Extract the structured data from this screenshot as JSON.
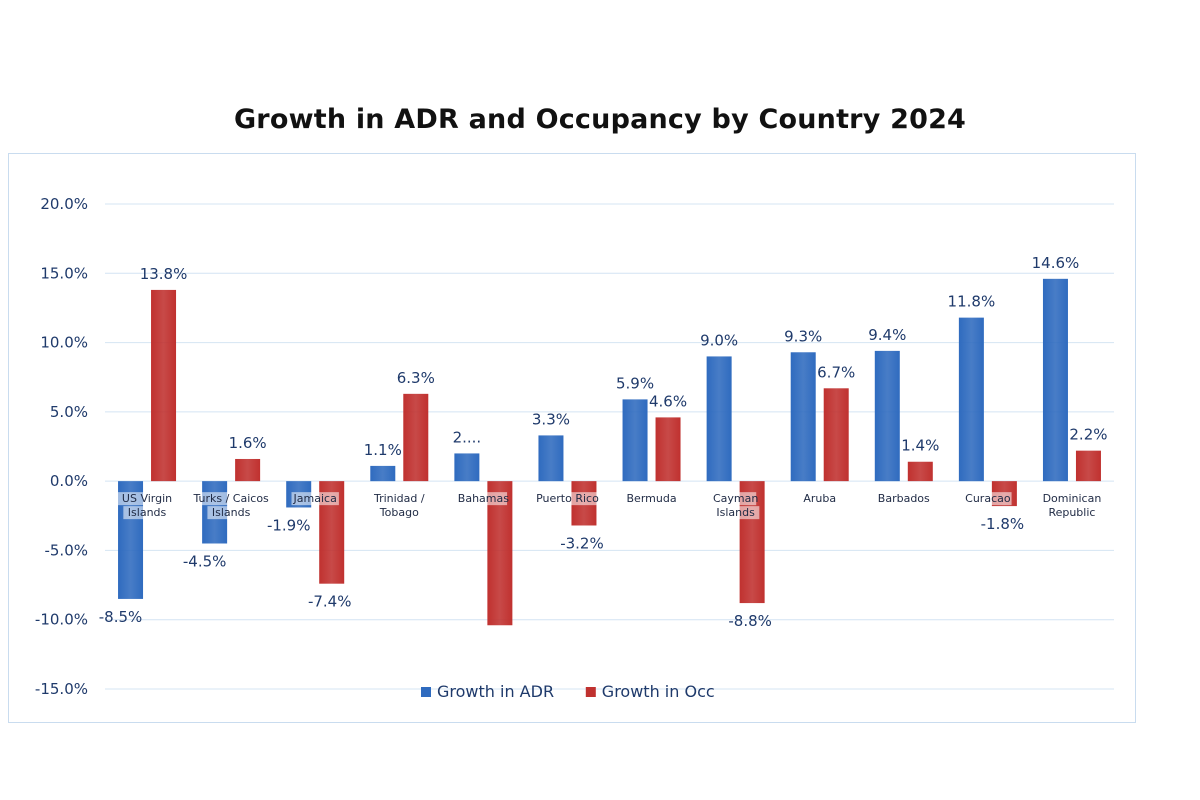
{
  "chart_data": {
    "type": "bar",
    "title": "Growth in ADR and Occupancy by Country 2024",
    "xlabel": "",
    "ylabel": "",
    "ylim": [
      -15,
      20
    ],
    "yticks": [
      "20.0%",
      "15.0%",
      "10.0%",
      "5.0%",
      "0.0%",
      "-5.0%",
      "-10.0%",
      "-15.0%"
    ],
    "ytick_values": [
      20,
      15,
      10,
      5,
      0,
      -5,
      -10,
      -15
    ],
    "grid": true,
    "legend_position": "bottom",
    "categories": [
      [
        "US Virgin",
        "Islands"
      ],
      [
        "Turks / Caicos",
        "Islands"
      ],
      [
        "Jamaica"
      ],
      [
        "Trinidad /",
        "Tobago"
      ],
      [
        "Bahamas"
      ],
      [
        "Puerto Rico"
      ],
      [
        "Bermuda"
      ],
      [
        "Cayman",
        "Islands"
      ],
      [
        "Aruba"
      ],
      [
        "Barbados"
      ],
      [
        "Curacao"
      ],
      [
        "Dominican",
        "Republic"
      ]
    ],
    "series": [
      {
        "name": "Growth in ADR",
        "color": "#2f6bbf",
        "values": [
          -8.5,
          -4.5,
          -1.9,
          1.1,
          2.0,
          3.3,
          5.9,
          9.0,
          9.3,
          9.4,
          11.8,
          14.6
        ],
        "labels": [
          "-8.5%",
          "-4.5%",
          "-1.9%",
          "1.1%",
          "2....",
          "3.3%",
          "5.9%",
          "9.0%",
          "9.3%",
          "9.4%",
          "11.8%",
          "14.6%"
        ]
      },
      {
        "name": "Growth in Occ",
        "color": "#c0312f",
        "values": [
          13.8,
          1.6,
          -7.4,
          6.3,
          -10.4,
          -3.2,
          4.6,
          -8.8,
          6.7,
          1.4,
          -1.8,
          2.2
        ],
        "labels": [
          "13.8%",
          "1.6%",
          "-7.4%",
          "6.3%",
          "",
          "-3.2%",
          "4.6%",
          "-8.8%",
          "6.7%",
          "1.4%",
          "-1.8%",
          "2.2%"
        ]
      }
    ]
  }
}
